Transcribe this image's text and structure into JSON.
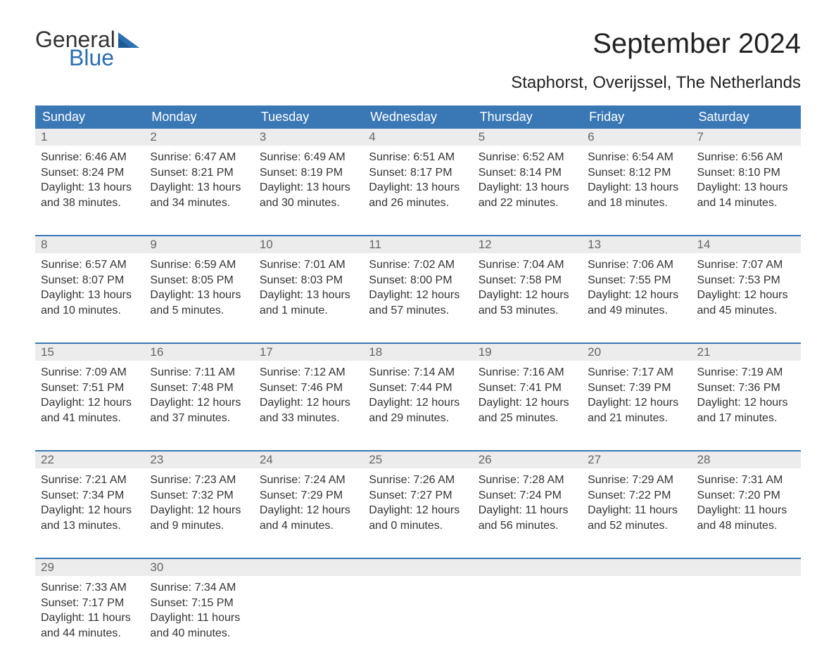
{
  "brand": {
    "general": "General",
    "blue": "Blue"
  },
  "title": "September 2024",
  "location": "Staphorst, Overijssel, The Netherlands",
  "colors": {
    "header_bg": "#3a78b5",
    "header_text": "#ffffff",
    "daynum_bg": "#ececec",
    "daynum_text": "#666666",
    "body_text": "#333333",
    "accent": "#2a6fb0",
    "page_bg": "#ffffff"
  },
  "typography": {
    "title_fontsize": 40,
    "location_fontsize": 24,
    "dayheader_fontsize": 18,
    "cell_fontsize": 16
  },
  "day_headers": [
    "Sunday",
    "Monday",
    "Tuesday",
    "Wednesday",
    "Thursday",
    "Friday",
    "Saturday"
  ],
  "weeks": [
    [
      {
        "num": "1",
        "sunrise": "Sunrise: 6:46 AM",
        "sunset": "Sunset: 8:24 PM",
        "day1": "Daylight: 13 hours",
        "day2": "and 38 minutes."
      },
      {
        "num": "2",
        "sunrise": "Sunrise: 6:47 AM",
        "sunset": "Sunset: 8:21 PM",
        "day1": "Daylight: 13 hours",
        "day2": "and 34 minutes."
      },
      {
        "num": "3",
        "sunrise": "Sunrise: 6:49 AM",
        "sunset": "Sunset: 8:19 PM",
        "day1": "Daylight: 13 hours",
        "day2": "and 30 minutes."
      },
      {
        "num": "4",
        "sunrise": "Sunrise: 6:51 AM",
        "sunset": "Sunset: 8:17 PM",
        "day1": "Daylight: 13 hours",
        "day2": "and 26 minutes."
      },
      {
        "num": "5",
        "sunrise": "Sunrise: 6:52 AM",
        "sunset": "Sunset: 8:14 PM",
        "day1": "Daylight: 13 hours",
        "day2": "and 22 minutes."
      },
      {
        "num": "6",
        "sunrise": "Sunrise: 6:54 AM",
        "sunset": "Sunset: 8:12 PM",
        "day1": "Daylight: 13 hours",
        "day2": "and 18 minutes."
      },
      {
        "num": "7",
        "sunrise": "Sunrise: 6:56 AM",
        "sunset": "Sunset: 8:10 PM",
        "day1": "Daylight: 13 hours",
        "day2": "and 14 minutes."
      }
    ],
    [
      {
        "num": "8",
        "sunrise": "Sunrise: 6:57 AM",
        "sunset": "Sunset: 8:07 PM",
        "day1": "Daylight: 13 hours",
        "day2": "and 10 minutes."
      },
      {
        "num": "9",
        "sunrise": "Sunrise: 6:59 AM",
        "sunset": "Sunset: 8:05 PM",
        "day1": "Daylight: 13 hours",
        "day2": "and 5 minutes."
      },
      {
        "num": "10",
        "sunrise": "Sunrise: 7:01 AM",
        "sunset": "Sunset: 8:03 PM",
        "day1": "Daylight: 13 hours",
        "day2": "and 1 minute."
      },
      {
        "num": "11",
        "sunrise": "Sunrise: 7:02 AM",
        "sunset": "Sunset: 8:00 PM",
        "day1": "Daylight: 12 hours",
        "day2": "and 57 minutes."
      },
      {
        "num": "12",
        "sunrise": "Sunrise: 7:04 AM",
        "sunset": "Sunset: 7:58 PM",
        "day1": "Daylight: 12 hours",
        "day2": "and 53 minutes."
      },
      {
        "num": "13",
        "sunrise": "Sunrise: 7:06 AM",
        "sunset": "Sunset: 7:55 PM",
        "day1": "Daylight: 12 hours",
        "day2": "and 49 minutes."
      },
      {
        "num": "14",
        "sunrise": "Sunrise: 7:07 AM",
        "sunset": "Sunset: 7:53 PM",
        "day1": "Daylight: 12 hours",
        "day2": "and 45 minutes."
      }
    ],
    [
      {
        "num": "15",
        "sunrise": "Sunrise: 7:09 AM",
        "sunset": "Sunset: 7:51 PM",
        "day1": "Daylight: 12 hours",
        "day2": "and 41 minutes."
      },
      {
        "num": "16",
        "sunrise": "Sunrise: 7:11 AM",
        "sunset": "Sunset: 7:48 PM",
        "day1": "Daylight: 12 hours",
        "day2": "and 37 minutes."
      },
      {
        "num": "17",
        "sunrise": "Sunrise: 7:12 AM",
        "sunset": "Sunset: 7:46 PM",
        "day1": "Daylight: 12 hours",
        "day2": "and 33 minutes."
      },
      {
        "num": "18",
        "sunrise": "Sunrise: 7:14 AM",
        "sunset": "Sunset: 7:44 PM",
        "day1": "Daylight: 12 hours",
        "day2": "and 29 minutes."
      },
      {
        "num": "19",
        "sunrise": "Sunrise: 7:16 AM",
        "sunset": "Sunset: 7:41 PM",
        "day1": "Daylight: 12 hours",
        "day2": "and 25 minutes."
      },
      {
        "num": "20",
        "sunrise": "Sunrise: 7:17 AM",
        "sunset": "Sunset: 7:39 PM",
        "day1": "Daylight: 12 hours",
        "day2": "and 21 minutes."
      },
      {
        "num": "21",
        "sunrise": "Sunrise: 7:19 AM",
        "sunset": "Sunset: 7:36 PM",
        "day1": "Daylight: 12 hours",
        "day2": "and 17 minutes."
      }
    ],
    [
      {
        "num": "22",
        "sunrise": "Sunrise: 7:21 AM",
        "sunset": "Sunset: 7:34 PM",
        "day1": "Daylight: 12 hours",
        "day2": "and 13 minutes."
      },
      {
        "num": "23",
        "sunrise": "Sunrise: 7:23 AM",
        "sunset": "Sunset: 7:32 PM",
        "day1": "Daylight: 12 hours",
        "day2": "and 9 minutes."
      },
      {
        "num": "24",
        "sunrise": "Sunrise: 7:24 AM",
        "sunset": "Sunset: 7:29 PM",
        "day1": "Daylight: 12 hours",
        "day2": "and 4 minutes."
      },
      {
        "num": "25",
        "sunrise": "Sunrise: 7:26 AM",
        "sunset": "Sunset: 7:27 PM",
        "day1": "Daylight: 12 hours",
        "day2": "and 0 minutes."
      },
      {
        "num": "26",
        "sunrise": "Sunrise: 7:28 AM",
        "sunset": "Sunset: 7:24 PM",
        "day1": "Daylight: 11 hours",
        "day2": "and 56 minutes."
      },
      {
        "num": "27",
        "sunrise": "Sunrise: 7:29 AM",
        "sunset": "Sunset: 7:22 PM",
        "day1": "Daylight: 11 hours",
        "day2": "and 52 minutes."
      },
      {
        "num": "28",
        "sunrise": "Sunrise: 7:31 AM",
        "sunset": "Sunset: 7:20 PM",
        "day1": "Daylight: 11 hours",
        "day2": "and 48 minutes."
      }
    ],
    [
      {
        "num": "29",
        "sunrise": "Sunrise: 7:33 AM",
        "sunset": "Sunset: 7:17 PM",
        "day1": "Daylight: 11 hours",
        "day2": "and 44 minutes."
      },
      {
        "num": "30",
        "sunrise": "Sunrise: 7:34 AM",
        "sunset": "Sunset: 7:15 PM",
        "day1": "Daylight: 11 hours",
        "day2": "and 40 minutes."
      },
      null,
      null,
      null,
      null,
      null
    ]
  ]
}
